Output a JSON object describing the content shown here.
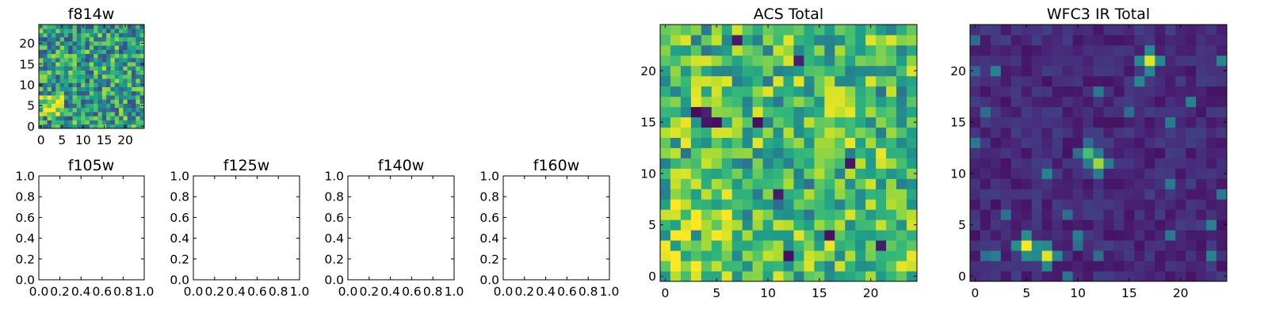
{
  "chart_data": [
    {
      "type": "heatmap",
      "title": "f814w",
      "grid_size": [
        25,
        25
      ],
      "xlim": [
        -0.5,
        24.5
      ],
      "ylim": [
        -0.5,
        24.5
      ],
      "xticks": [
        0,
        5,
        10,
        15,
        20
      ],
      "yticks": [
        0,
        5,
        10,
        15,
        20
      ],
      "colormap": "viridis",
      "description_values": "noise-like field; brighter patch near x 0-5, y 3-7"
    },
    {
      "type": "heatmap",
      "title": "f105w",
      "empty": true,
      "xlim": [
        0,
        1
      ],
      "ylim": [
        0,
        1
      ],
      "xticks": [
        "0.0",
        "0.2",
        "0.4",
        "0.6",
        "0.8",
        "1.0"
      ],
      "yticks": [
        "0.0",
        "0.2",
        "0.4",
        "0.6",
        "0.8",
        "1.0"
      ]
    },
    {
      "type": "heatmap",
      "title": "f125w",
      "empty": true,
      "xlim": [
        0,
        1
      ],
      "ylim": [
        0,
        1
      ],
      "xticks": [
        "0.0",
        "0.2",
        "0.4",
        "0.6",
        "0.8",
        "1.0"
      ],
      "yticks": [
        "0.0",
        "0.2",
        "0.4",
        "0.6",
        "0.8",
        "1.0"
      ]
    },
    {
      "type": "heatmap",
      "title": "f140w",
      "empty": true,
      "xlim": [
        0,
        1
      ],
      "ylim": [
        0,
        1
      ],
      "xticks": [
        "0.0",
        "0.2",
        "0.4",
        "0.6",
        "0.8",
        "1.0"
      ],
      "yticks": [
        "0.0",
        "0.2",
        "0.4",
        "0.6",
        "0.8",
        "1.0"
      ]
    },
    {
      "type": "heatmap",
      "title": "f160w",
      "empty": true,
      "xlim": [
        0,
        1
      ],
      "ylim": [
        0,
        1
      ],
      "xticks": [
        "0.0",
        "0.2",
        "0.4",
        "0.6",
        "0.8",
        "1.0"
      ],
      "yticks": [
        "0.0",
        "0.2",
        "0.4",
        "0.6",
        "0.8",
        "1.0"
      ]
    },
    {
      "type": "heatmap",
      "title": "ACS Total",
      "grid_size": [
        25,
        25
      ],
      "xlim": [
        -0.5,
        24.5
      ],
      "ylim": [
        -0.5,
        24.5
      ],
      "xticks": [
        0,
        5,
        10,
        15,
        20
      ],
      "yticks": [
        0,
        5,
        10,
        15,
        20
      ],
      "colormap": "viridis"
    },
    {
      "type": "heatmap",
      "title": "WFC3 IR Total",
      "grid_size": [
        25,
        25
      ],
      "xlim": [
        -0.5,
        24.5
      ],
      "ylim": [
        -0.5,
        24.5
      ],
      "xticks": [
        0,
        5,
        10,
        15,
        20
      ],
      "yticks": [
        0,
        5,
        10,
        15,
        20
      ],
      "colormap": "viridis",
      "bright_sources": [
        {
          "x": 5,
          "y": 3,
          "level": 1.0
        },
        {
          "x": 7,
          "y": 2,
          "level": 0.95
        },
        {
          "x": 11,
          "y": 12,
          "level": 0.7
        },
        {
          "x": 12,
          "y": 11,
          "level": 0.85
        },
        {
          "x": 17,
          "y": 21,
          "level": 0.95
        }
      ]
    }
  ]
}
